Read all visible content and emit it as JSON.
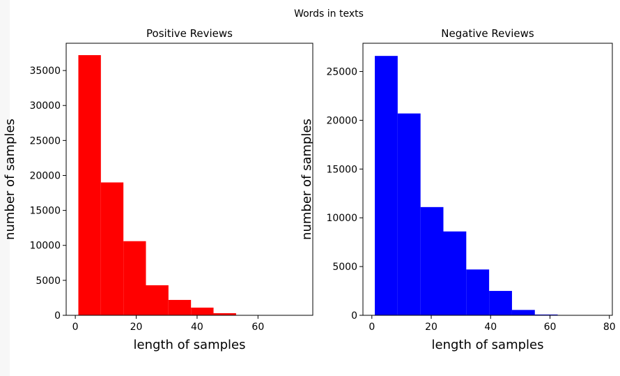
{
  "figure": {
    "suptitle": "Words in texts"
  },
  "chart_data": [
    {
      "type": "bar",
      "title": "Positive Reviews",
      "xlabel": "length of samples",
      "ylabel": "number of samples",
      "color": "#ff0000",
      "xlim": [
        -3,
        78
      ],
      "ylim": [
        0,
        38900
      ],
      "xticks": [
        0,
        20,
        40,
        60
      ],
      "yticks": [
        0,
        5000,
        10000,
        15000,
        20000,
        25000,
        30000,
        35000
      ],
      "bin_edges": [
        1,
        8.4,
        15.8,
        23.2,
        30.6,
        38,
        45.4,
        52.8,
        60.2,
        67.6,
        75
      ],
      "values": [
        37200,
        19000,
        10600,
        4300,
        2200,
        1100,
        300,
        40,
        10,
        5
      ]
    },
    {
      "type": "bar",
      "title": "Negative Reviews",
      "xlabel": "length of samples",
      "ylabel": "number of samples",
      "color": "#0000ff",
      "xlim": [
        -3,
        81
      ],
      "ylim": [
        0,
        27900
      ],
      "xticks": [
        0,
        20,
        40,
        60,
        80
      ],
      "yticks": [
        0,
        5000,
        10000,
        15000,
        20000,
        25000
      ],
      "bin_edges": [
        1,
        8.7,
        16.4,
        24.1,
        31.8,
        39.5,
        47.2,
        54.9,
        62.6,
        70.3,
        78
      ],
      "values": [
        26600,
        20700,
        11100,
        8600,
        4700,
        2500,
        550,
        80,
        10,
        5
      ]
    }
  ]
}
